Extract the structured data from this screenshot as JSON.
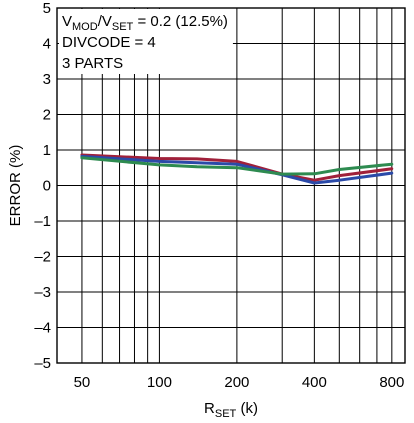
{
  "chart_data": {
    "type": "line",
    "xlabel": {
      "main": "R",
      "sub": "SET",
      "unit": " (k)"
    },
    "ylabel": "ERROR (%)",
    "x_scale": "log",
    "xlim": [
      40,
      900
    ],
    "ylim": [
      -5,
      5
    ],
    "x_ticks": [
      50,
      100,
      200,
      400,
      800
    ],
    "x_tick_labels": [
      "50",
      "100",
      "200",
      "400",
      "800"
    ],
    "x_grid": [
      50,
      60,
      70,
      80,
      90,
      100,
      200,
      300,
      400,
      500,
      600,
      700,
      800,
      900
    ],
    "y_ticks": [
      -5,
      -4,
      -3,
      -2,
      -1,
      0,
      1,
      2,
      3,
      4,
      5
    ],
    "y_tick_labels": [
      "–5",
      "–4",
      "–3",
      "–2",
      "–1",
      "0",
      "1",
      "2",
      "3",
      "4",
      "5"
    ],
    "grid": true,
    "annotations": [
      {
        "parts": [
          {
            "t": "V"
          },
          {
            "t": "MOD",
            "sub": true
          },
          {
            "t": "/V"
          },
          {
            "t": "SET",
            "sub": true
          },
          {
            "t": " = 0.2 (12.5%)"
          }
        ]
      },
      {
        "parts": [
          {
            "t": "DIVCODE = 4"
          }
        ]
      },
      {
        "parts": [
          {
            "t": "3 PARTS"
          }
        ]
      }
    ],
    "series": [
      {
        "color": "#a0203a",
        "x": [
          50,
          100,
          140,
          200,
          300,
          400,
          500,
          800
        ],
        "y": [
          0.86,
          0.76,
          0.75,
          0.68,
          0.32,
          0.15,
          0.28,
          0.47
        ]
      },
      {
        "color": "#2b4aa8",
        "x": [
          50,
          100,
          140,
          200,
          300,
          400,
          500,
          800
        ],
        "y": [
          0.82,
          0.68,
          0.64,
          0.6,
          0.3,
          0.07,
          0.15,
          0.35
        ]
      },
      {
        "color": "#2e8b50",
        "x": [
          50,
          100,
          140,
          200,
          300,
          400,
          500,
          800
        ],
        "y": [
          0.78,
          0.58,
          0.53,
          0.5,
          0.32,
          0.33,
          0.45,
          0.6
        ]
      }
    ]
  }
}
